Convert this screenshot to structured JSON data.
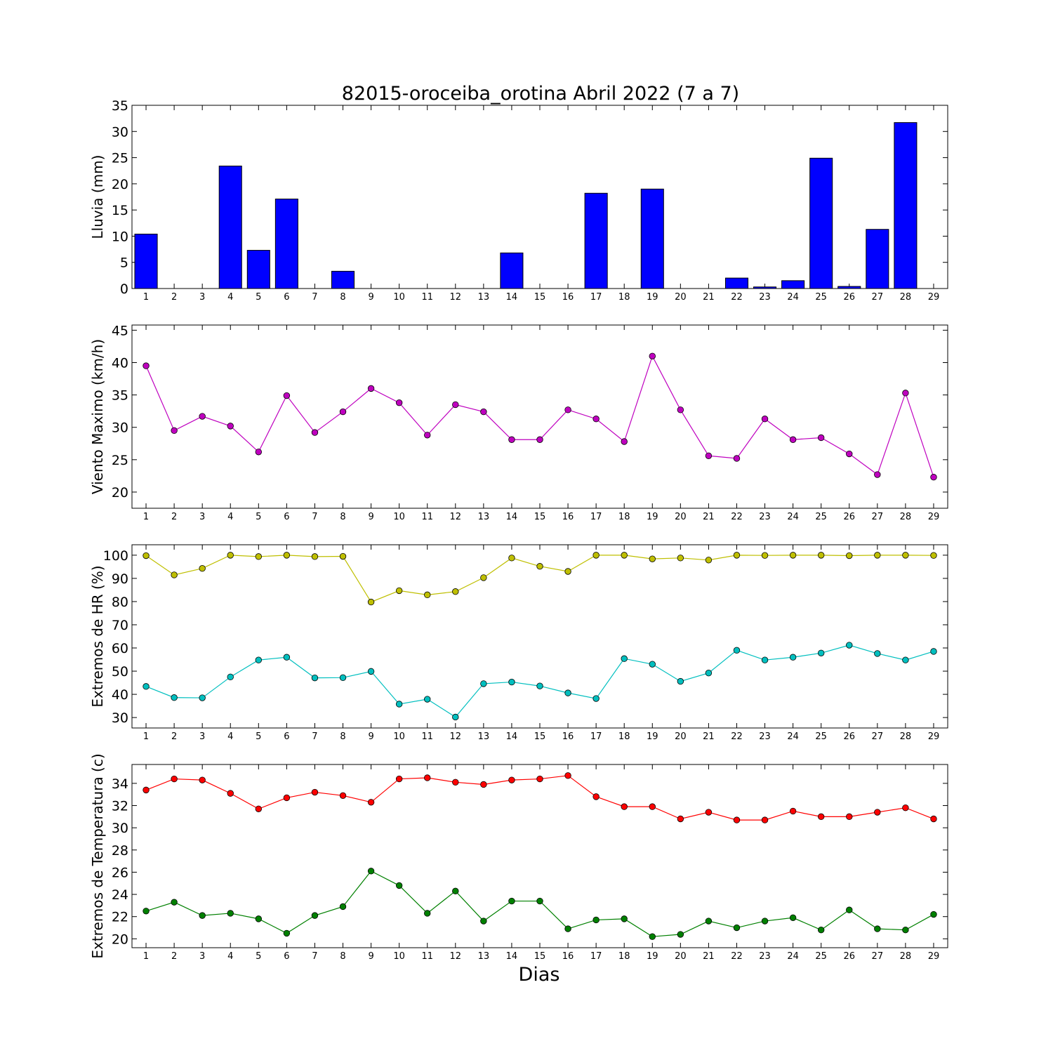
{
  "chart_data": [
    {
      "type": "bar",
      "title": "82015-oroceiba_orotina Abril 2022  (7 a 7)",
      "ylabel": "Lluvia (mm)",
      "xlabel": "",
      "categories": [
        "1",
        "2",
        "3",
        "4",
        "5",
        "6",
        "7",
        "8",
        "9",
        "10",
        "11",
        "12",
        "13",
        "14",
        "15",
        "16",
        "17",
        "18",
        "19",
        "20",
        "21",
        "22",
        "23",
        "24",
        "25",
        "26",
        "27",
        "28",
        "29"
      ],
      "values": [
        10.4,
        0,
        0,
        23.4,
        7.3,
        17.1,
        0,
        3.3,
        0,
        0,
        0,
        0,
        0,
        6.8,
        0,
        0,
        18.2,
        0,
        19.0,
        0,
        0,
        2.0,
        0.3,
        1.5,
        24.9,
        0.4,
        11.3,
        31.7,
        0
      ],
      "ylim": [
        0,
        35
      ],
      "yticks": [
        0,
        5,
        10,
        15,
        20,
        25,
        30,
        35
      ],
      "color": "#0000ff"
    },
    {
      "type": "line",
      "ylabel": "Viento Maximo (km/h)",
      "xlabel": "",
      "x": [
        1,
        2,
        3,
        4,
        5,
        6,
        7,
        8,
        9,
        10,
        11,
        12,
        13,
        14,
        15,
        16,
        17,
        18,
        19,
        20,
        21,
        22,
        23,
        24,
        25,
        26,
        27,
        28,
        29
      ],
      "series": [
        {
          "color": "#bf00bf",
          "values": [
            39.5,
            29.5,
            31.7,
            30.2,
            26.2,
            34.9,
            29.2,
            32.4,
            36.0,
            33.8,
            28.8,
            33.5,
            32.4,
            28.1,
            28.1,
            32.7,
            31.3,
            27.8,
            41.0,
            32.7,
            25.6,
            25.2,
            31.3,
            28.1,
            28.4,
            25.9,
            22.7,
            35.3,
            22.3
          ]
        }
      ],
      "ylim": [
        17.5,
        45.8
      ],
      "yticks": [
        20,
        25,
        30,
        35,
        40,
        45
      ]
    },
    {
      "type": "line",
      "ylabel": "Extremos de HR (%)",
      "xlabel": "",
      "x": [
        1,
        2,
        3,
        4,
        5,
        6,
        7,
        8,
        9,
        10,
        11,
        12,
        13,
        14,
        15,
        16,
        17,
        18,
        19,
        20,
        21,
        22,
        23,
        24,
        25,
        26,
        27,
        28,
        29
      ],
      "series": [
        {
          "color": "#bfbf00",
          "values": [
            99.8,
            91.5,
            94.3,
            100.0,
            99.4,
            100.0,
            99.4,
            99.5,
            79.8,
            84.7,
            82.9,
            84.3,
            90.3,
            98.8,
            95.2,
            93.0,
            100.0,
            100.0,
            98.4,
            98.8,
            97.9,
            100.0,
            99.9,
            100.0,
            100.0,
            99.8,
            100.0,
            100.0,
            99.9
          ]
        },
        {
          "color": "#00bfbf",
          "values": [
            43.4,
            38.6,
            38.5,
            47.5,
            54.8,
            56.0,
            47.1,
            47.2,
            49.9,
            35.8,
            37.9,
            30.2,
            44.6,
            45.3,
            43.6,
            40.6,
            38.2,
            55.4,
            53.0,
            45.6,
            49.2,
            59.0,
            54.8,
            56.0,
            57.8,
            61.2,
            57.6,
            54.8,
            58.5
          ]
        }
      ],
      "ylim": [
        25.5,
        104.5
      ],
      "yticks": [
        30,
        40,
        50,
        60,
        70,
        80,
        90,
        100
      ]
    },
    {
      "type": "line",
      "ylabel": "Extremos de Temperatura (c)",
      "xlabel": "Dias",
      "x": [
        1,
        2,
        3,
        4,
        5,
        6,
        7,
        8,
        9,
        10,
        11,
        12,
        13,
        14,
        15,
        16,
        17,
        18,
        19,
        20,
        21,
        22,
        23,
        24,
        25,
        26,
        27,
        28,
        29
      ],
      "series": [
        {
          "color": "#ff0000",
          "values": [
            33.4,
            34.4,
            34.3,
            33.1,
            31.7,
            32.7,
            33.2,
            32.9,
            32.3,
            34.4,
            34.5,
            34.1,
            33.9,
            34.3,
            34.4,
            34.7,
            32.8,
            31.9,
            31.9,
            30.8,
            31.4,
            30.7,
            30.7,
            31.5,
            31.0,
            31.0,
            31.4,
            31.8,
            30.8
          ]
        },
        {
          "color": "#008000",
          "values": [
            22.5,
            23.3,
            22.1,
            22.3,
            21.8,
            20.5,
            22.1,
            22.9,
            26.1,
            24.8,
            22.3,
            24.3,
            21.6,
            23.4,
            23.4,
            20.9,
            21.7,
            21.8,
            20.2,
            20.4,
            21.6,
            21.0,
            21.6,
            21.9,
            20.8,
            22.6,
            20.9,
            20.8,
            22.2
          ]
        }
      ],
      "ylim": [
        19.2,
        35.7
      ],
      "yticks": [
        20,
        22,
        24,
        26,
        28,
        30,
        32,
        34
      ]
    }
  ]
}
